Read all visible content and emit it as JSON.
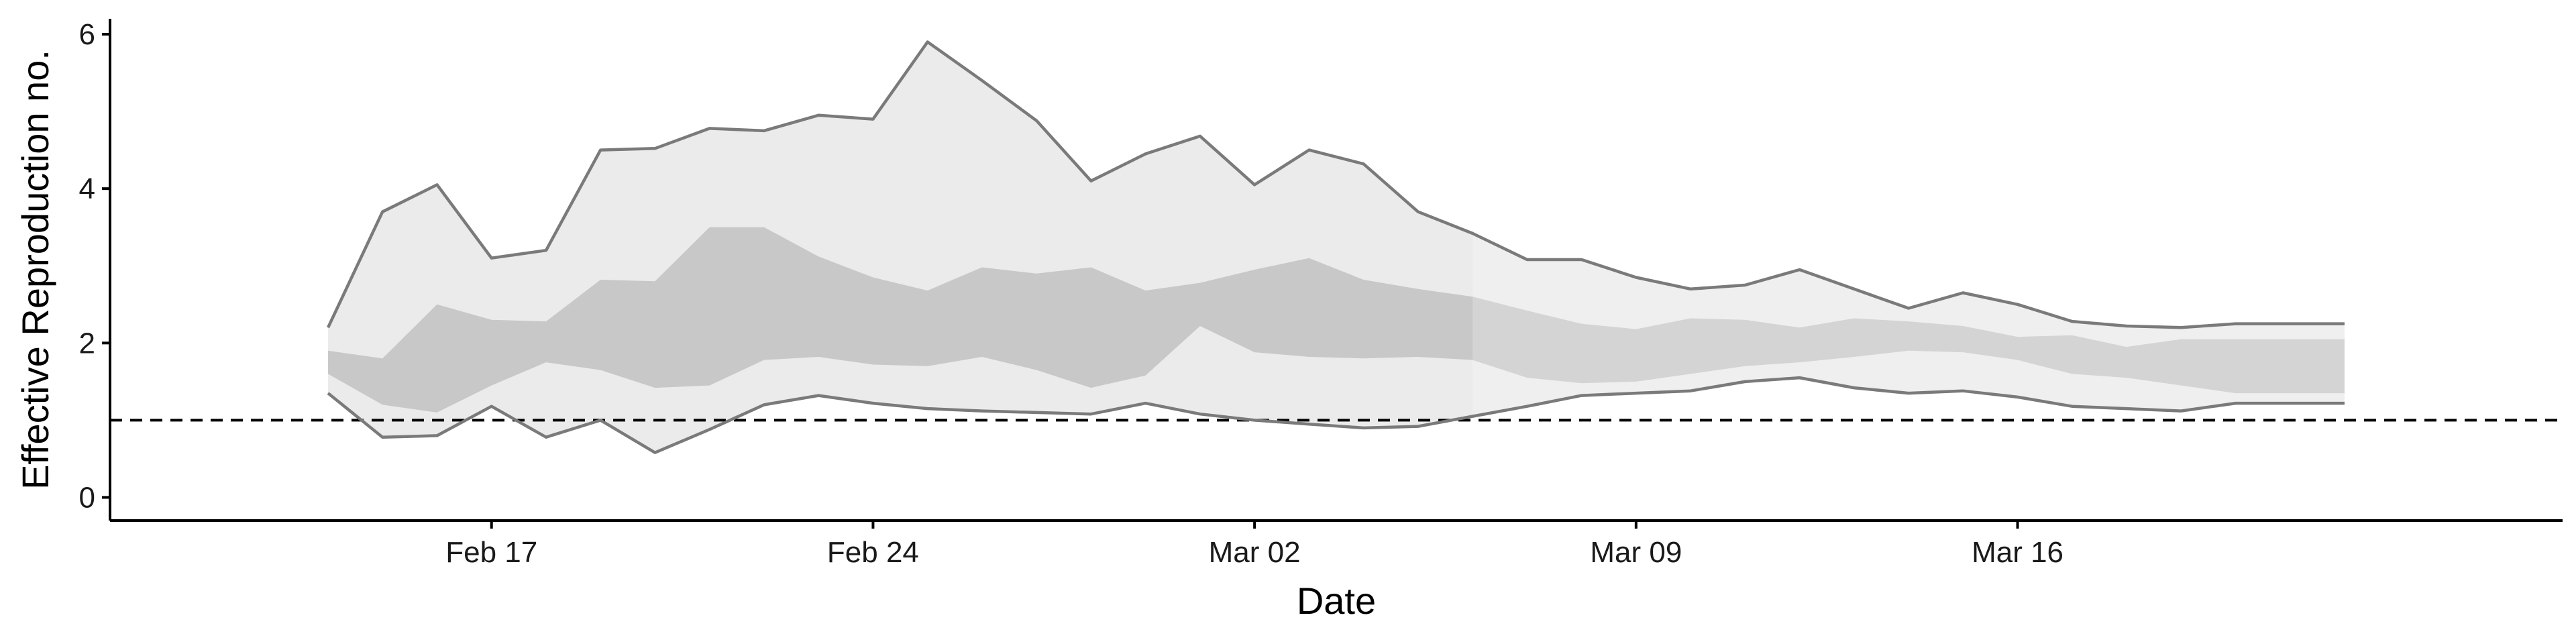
{
  "chart_data": {
    "type": "area",
    "xlabel": "Date",
    "ylabel": "Effective Reproduction no.",
    "xlim": [
      "2020-02-10",
      "2020-03-26"
    ],
    "ylim": [
      -0.3,
      6.2
    ],
    "x_ticks": [
      {
        "date": "2020-02-17",
        "label": "Feb 17"
      },
      {
        "date": "2020-02-24",
        "label": "Feb 24"
      },
      {
        "date": "2020-03-02",
        "label": "Mar 02"
      },
      {
        "date": "2020-03-09",
        "label": "Mar 09"
      },
      {
        "date": "2020-03-16",
        "label": "Mar 16"
      }
    ],
    "y_ticks": [
      0,
      2,
      4,
      6
    ],
    "reference_line": {
      "y": 1,
      "style": "dashed"
    },
    "colors": {
      "outer_band": "#ebebeb",
      "inner_band": "#c8c8c8",
      "bound_line": "#7a7a7a"
    },
    "x": [
      "2020-02-14",
      "2020-02-15",
      "2020-02-16",
      "2020-02-17",
      "2020-02-18",
      "2020-02-19",
      "2020-02-20",
      "2020-02-21",
      "2020-02-22",
      "2020-02-23",
      "2020-02-24",
      "2020-02-25",
      "2020-02-26",
      "2020-02-27",
      "2020-02-28",
      "2020-02-29",
      "2020-03-01",
      "2020-03-02",
      "2020-03-03",
      "2020-03-04",
      "2020-03-05",
      "2020-03-06",
      "2020-03-07",
      "2020-03-08",
      "2020-03-09",
      "2020-03-10",
      "2020-03-11",
      "2020-03-12",
      "2020-03-13",
      "2020-03-14",
      "2020-03-15",
      "2020-03-16",
      "2020-03-17",
      "2020-03-18",
      "2020-03-19",
      "2020-03-20",
      "2020-03-21",
      "2020-03-22"
    ],
    "series": [
      {
        "name": "",
        "values": [
          2.2,
          3.7,
          4.05,
          3.1,
          3.2,
          4.5,
          4.52,
          4.78,
          4.75,
          4.95,
          4.9,
          5.9,
          5.4,
          4.88,
          4.1,
          4.45,
          4.68,
          4.05,
          4.5,
          4.32,
          3.7,
          3.42,
          3.08,
          3.08,
          2.85,
          2.7,
          2.75,
          2.95,
          2.7,
          2.45,
          2.65,
          2.5,
          2.28,
          2.22,
          2.2,
          2.25,
          2.25,
          2.25
        ]
      },
      {
        "name": "",
        "values": [
          1.9,
          1.8,
          2.5,
          2.3,
          2.28,
          2.82,
          2.8,
          3.5,
          3.5,
          3.12,
          2.85,
          2.68,
          2.98,
          2.9,
          2.98,
          2.68,
          2.78,
          2.95,
          3.1,
          2.82,
          2.7,
          2.6,
          2.42,
          2.25,
          2.18,
          2.32,
          2.3,
          2.2,
          2.32,
          2.28,
          2.22,
          2.08,
          2.1,
          1.95,
          2.05,
          2.05,
          2.05,
          2.05
        ]
      },
      {
        "name": "",
        "values": [
          1.6,
          1.2,
          1.1,
          1.45,
          1.75,
          1.65,
          1.42,
          1.45,
          1.78,
          1.82,
          1.72,
          1.7,
          1.82,
          1.65,
          1.42,
          1.58,
          2.22,
          1.88,
          1.82,
          1.8,
          1.82,
          1.78,
          1.55,
          1.48,
          1.5,
          1.6,
          1.7,
          1.75,
          1.82,
          1.9,
          1.88,
          1.78,
          1.6,
          1.55,
          1.45,
          1.35,
          1.35,
          1.35
        ]
      },
      {
        "name": "",
        "values": [
          1.35,
          0.78,
          0.8,
          1.18,
          0.78,
          1.0,
          0.58,
          0.88,
          1.2,
          1.32,
          1.22,
          1.15,
          1.12,
          1.1,
          1.08,
          1.22,
          1.08,
          1.0,
          0.95,
          0.9,
          0.92,
          1.05,
          1.18,
          1.32,
          1.35,
          1.38,
          1.5,
          1.55,
          1.42,
          1.35,
          1.38,
          1.3,
          1.18,
          1.15,
          1.12,
          1.22,
          1.22,
          1.22
        ]
      }
    ]
  }
}
